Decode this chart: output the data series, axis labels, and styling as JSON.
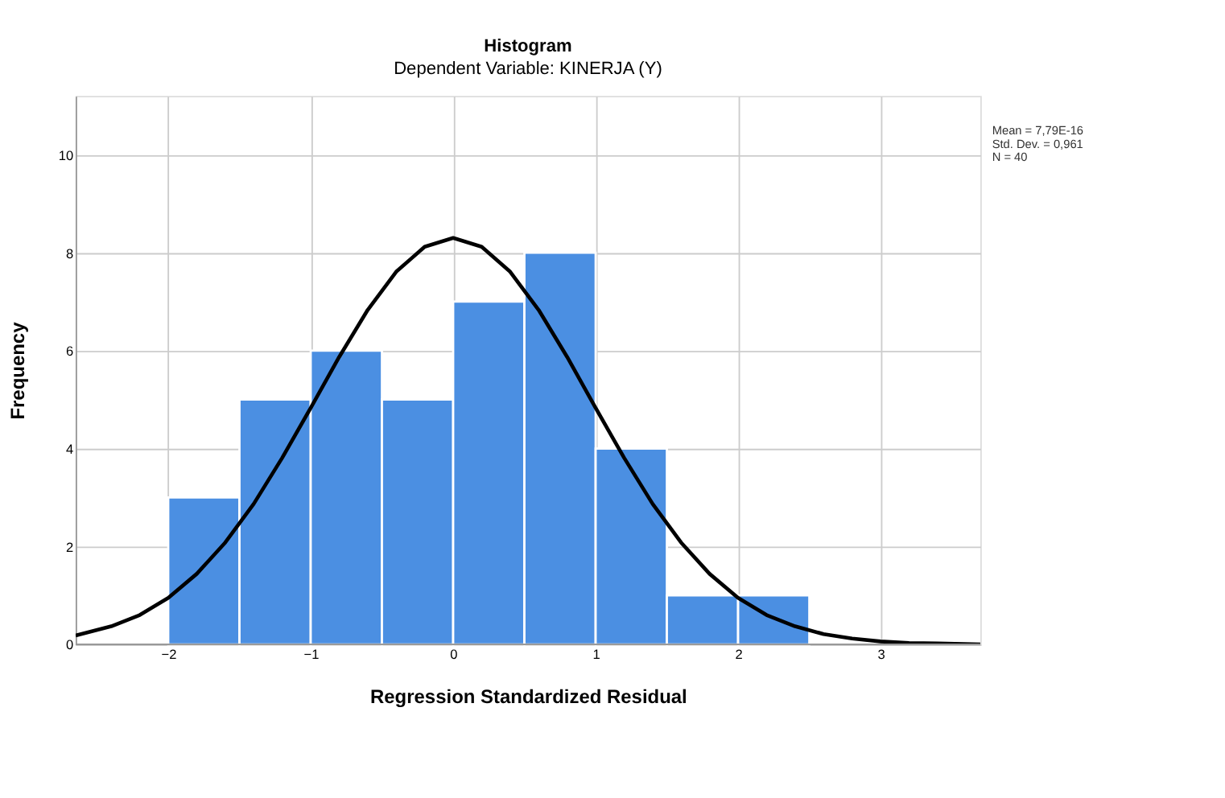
{
  "chart_data": {
    "type": "histogram",
    "title": "Histogram",
    "subtitle": "Dependent Variable: KINERJA (Y)",
    "xlabel": "Regression Standardized Residual",
    "ylabel": "Frequency",
    "xlim": [
      -2.65,
      3.7
    ],
    "xticks": [
      -2,
      -1,
      0,
      1,
      2,
      3
    ],
    "ylim": [
      0,
      11.2
    ],
    "yticks": [
      0,
      2,
      4,
      6,
      8,
      10
    ],
    "grid": true,
    "annotations": [
      "Mean = 7,79E-16",
      "Std. Dev. = 0,961",
      "N = 40"
    ],
    "series": [
      {
        "color": "#4b8fe2",
        "bins": [
          -2,
          -1.5,
          -1,
          -0.5,
          0,
          0.5,
          1,
          1.5,
          2,
          2.5
        ],
        "values": [
          3,
          5,
          6,
          5,
          7,
          8,
          4,
          1,
          1
        ]
      },
      {
        "type": "line",
        "color": "#000000",
        "x": [
          -2.65,
          -2.4,
          -2.2,
          -2,
          -1.8,
          -1.6,
          -1.4,
          -1.2,
          -1,
          -0.8,
          -0.6,
          -0.4,
          -0.2,
          0,
          0.2,
          0.4,
          0.6,
          0.8,
          1,
          1.2,
          1.4,
          1.6,
          1.8,
          2,
          2.2,
          2.4,
          2.6,
          2.8,
          3,
          3.2,
          3.4,
          3.7
        ],
        "values": [
          0.18,
          0.37,
          0.6,
          0.95,
          1.44,
          2.08,
          2.87,
          3.81,
          4.83,
          5.87,
          6.83,
          7.61,
          8.12,
          8.3,
          8.12,
          7.61,
          6.83,
          5.87,
          4.83,
          3.81,
          2.87,
          2.08,
          1.44,
          0.95,
          0.6,
          0.37,
          0.21,
          0.12,
          0.06,
          0.03,
          0.02,
          0
        ]
      }
    ]
  }
}
